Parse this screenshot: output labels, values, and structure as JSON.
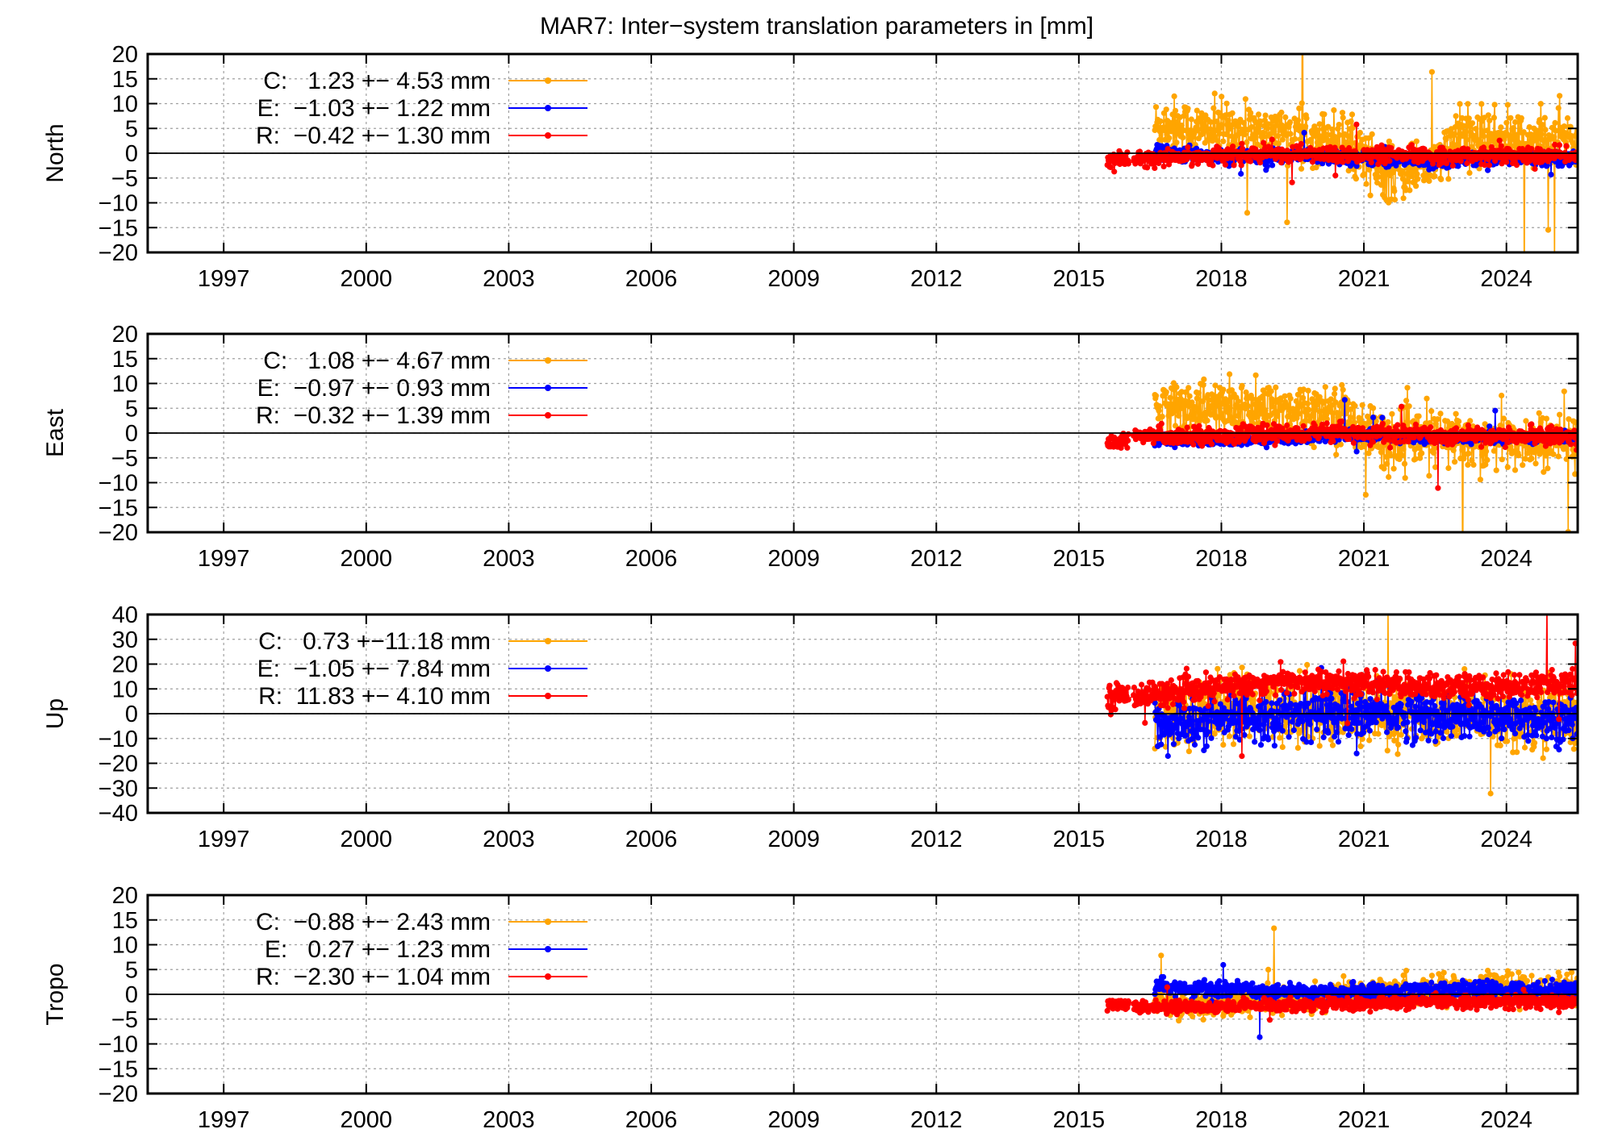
{
  "title": "MAR7: Inter−system translation parameters in [mm]",
  "colors": {
    "C": "#ffa500",
    "E": "#0000ff",
    "R": "#ff0000"
  },
  "chart_data": [
    {
      "type": "line",
      "ylabel": "North",
      "ylim": [
        -20,
        20
      ],
      "yticks": [
        "20",
        "15",
        "10",
        "5",
        "0",
        "−5",
        "−10",
        "−15",
        "−20"
      ],
      "ytick_values": [
        20,
        15,
        10,
        5,
        0,
        -5,
        -10,
        -15,
        -20
      ],
      "xlim": [
        1995.4,
        2025.5
      ],
      "xticks": [
        "1997",
        "2000",
        "2003",
        "2006",
        "2009",
        "2012",
        "2015",
        "2018",
        "2021",
        "2024"
      ],
      "xtick_values": [
        1997,
        2000,
        2003,
        2006,
        2009,
        2012,
        2015,
        2018,
        2021,
        2024
      ],
      "legend_position": "top-left",
      "series": [
        {
          "name": "C",
          "legend": "C:   1.23 +− 4.53 mm",
          "color": "#ffa500",
          "start": 2016.6,
          "end": 2025.5,
          "mean": 1.23,
          "spread": 4.53,
          "x": [
            2016.6,
            2017.0,
            2017.5,
            2018.0,
            2018.5,
            2019.0,
            2019.5,
            2020.0,
            2020.5,
            2021.0,
            2021.5,
            2022.0,
            2022.5,
            2023.0,
            2023.5,
            2024.0,
            2024.5,
            2025.0,
            2025.5
          ],
          "y": [
            5.5,
            6.0,
            4.5,
            5.0,
            4.0,
            4.5,
            4.0,
            3.5,
            3.0,
            0.0,
            -5.0,
            -3.0,
            -2.0,
            3.0,
            3.5,
            3.0,
            2.5,
            3.0,
            3.0
          ]
        },
        {
          "name": "E",
          "legend": "E:  −1.03 +− 1.22 mm",
          "color": "#0000ff",
          "start": 2016.6,
          "end": 2025.5,
          "mean": -1.03,
          "spread": 1.22,
          "x": [
            2016.6,
            2018.0,
            2019.5,
            2021.0,
            2022.5,
            2024.0,
            2025.5
          ],
          "y": [
            0.0,
            -0.5,
            -0.5,
            -1.0,
            -1.5,
            -1.0,
            -1.0
          ]
        },
        {
          "name": "R",
          "legend": "R:  −0.42 +− 1.30 mm",
          "color": "#ff0000",
          "start": 2015.6,
          "end": 2025.5,
          "mean": -0.42,
          "spread": 1.3,
          "x": [
            2015.6,
            2016.5,
            2018.0,
            2019.5,
            2021.0,
            2022.5,
            2024.0,
            2025.5
          ],
          "y": [
            -1.5,
            -1.0,
            -0.5,
            0.0,
            -0.5,
            -0.5,
            -0.5,
            -0.5
          ]
        }
      ]
    },
    {
      "type": "line",
      "ylabel": "East",
      "ylim": [
        -20,
        20
      ],
      "yticks": [
        "20",
        "15",
        "10",
        "5",
        "0",
        "−5",
        "−10",
        "−15",
        "−20"
      ],
      "ytick_values": [
        20,
        15,
        10,
        5,
        0,
        -5,
        -10,
        -15,
        -20
      ],
      "xlim": [
        1995.4,
        2025.5
      ],
      "xticks": [
        "1997",
        "2000",
        "2003",
        "2006",
        "2009",
        "2012",
        "2015",
        "2018",
        "2021",
        "2024"
      ],
      "xtick_values": [
        1997,
        2000,
        2003,
        2006,
        2009,
        2012,
        2015,
        2018,
        2021,
        2024
      ],
      "legend_position": "top-left",
      "series": [
        {
          "name": "C",
          "legend": "C:   1.08 +− 4.67 mm",
          "color": "#ffa500",
          "start": 2016.6,
          "end": 2025.5,
          "mean": 1.08,
          "spread": 4.67,
          "x": [
            2016.6,
            2017.5,
            2018.5,
            2019.5,
            2020.5,
            2021.0,
            2021.5,
            2022.5,
            2023.5,
            2024.5,
            2025.5
          ],
          "y": [
            5.0,
            5.0,
            4.5,
            5.0,
            4.0,
            1.0,
            -2.0,
            -1.0,
            -1.5,
            -2.0,
            -1.5
          ]
        },
        {
          "name": "E",
          "legend": "E:  −0.97 +− 0.93 mm",
          "color": "#0000ff",
          "start": 2016.6,
          "end": 2025.5,
          "mean": -0.97,
          "spread": 0.93,
          "x": [
            2016.6,
            2018.0,
            2019.5,
            2021.0,
            2022.5,
            2024.0,
            2025.5
          ],
          "y": [
            -1.5,
            -1.5,
            -1.0,
            -0.5,
            -1.0,
            -1.0,
            -1.0
          ]
        },
        {
          "name": "R",
          "legend": "R:  −0.32 +− 1.39 mm",
          "color": "#ff0000",
          "start": 2015.6,
          "end": 2025.5,
          "mean": -0.32,
          "spread": 1.39,
          "x": [
            2015.6,
            2016.5,
            2018.0,
            2019.5,
            2021.0,
            2022.5,
            2024.0,
            2025.5
          ],
          "y": [
            -2.0,
            -0.5,
            -0.5,
            0.0,
            0.0,
            -0.5,
            -0.5,
            -0.5
          ]
        }
      ]
    },
    {
      "type": "line",
      "ylabel": "Up",
      "ylim": [
        -40,
        40
      ],
      "yticks": [
        "40",
        "30",
        "20",
        "10",
        "0",
        "−10",
        "−20",
        "−30",
        "−40"
      ],
      "ytick_values": [
        40,
        30,
        20,
        10,
        0,
        -10,
        -20,
        -30,
        -40
      ],
      "xlim": [
        1995.4,
        2025.5
      ],
      "xticks": [
        "1997",
        "2000",
        "2003",
        "2006",
        "2009",
        "2012",
        "2015",
        "2018",
        "2021",
        "2024"
      ],
      "xtick_values": [
        1997,
        2000,
        2003,
        2006,
        2009,
        2012,
        2015,
        2018,
        2021,
        2024
      ],
      "legend_position": "top-left",
      "series": [
        {
          "name": "C",
          "legend": "C:   0.73 +−11.18 mm",
          "color": "#ffa500",
          "start": 2016.6,
          "end": 2025.5,
          "mean": 0.73,
          "spread": 11.18,
          "x": [
            2016.6,
            2018.0,
            2019.5,
            2021.0,
            2022.5,
            2024.0,
            2025.5
          ],
          "y": [
            0.0,
            2.0,
            2.0,
            1.0,
            0.0,
            0.0,
            0.0
          ]
        },
        {
          "name": "E",
          "legend": "E:  −1.05 +− 7.84 mm",
          "color": "#0000ff",
          "start": 2016.6,
          "end": 2025.5,
          "mean": -1.05,
          "spread": 7.84,
          "x": [
            2016.6,
            2017.5,
            2018.5,
            2019.5,
            2021.0,
            2022.5,
            2024.0,
            2025.5
          ],
          "y": [
            -6.0,
            -4.0,
            -2.0,
            0.0,
            0.0,
            -1.0,
            -2.0,
            -2.0
          ]
        },
        {
          "name": "R",
          "legend": "R:  11.83 +− 4.10 mm",
          "color": "#ff0000",
          "start": 2015.6,
          "end": 2025.5,
          "mean": 11.83,
          "spread": 4.1,
          "x": [
            2015.6,
            2016.5,
            2017.5,
            2018.5,
            2019.5,
            2021.0,
            2022.5,
            2024.0,
            2025.5
          ],
          "y": [
            7.0,
            8.0,
            9.0,
            12.0,
            13.0,
            12.0,
            11.0,
            11.0,
            12.0
          ]
        }
      ]
    },
    {
      "type": "line",
      "ylabel": "Tropo",
      "ylim": [
        -20,
        20
      ],
      "yticks": [
        "20",
        "15",
        "10",
        "5",
        "0",
        "−5",
        "−10",
        "−15",
        "−20"
      ],
      "ytick_values": [
        20,
        15,
        10,
        5,
        0,
        -5,
        -10,
        -15,
        -20
      ],
      "xlim": [
        1995.4,
        2025.5
      ],
      "xticks": [
        "1997",
        "2000",
        "2003",
        "2006",
        "2009",
        "2012",
        "2015",
        "2018",
        "2021",
        "2024"
      ],
      "xtick_values": [
        1997,
        2000,
        2003,
        2006,
        2009,
        2012,
        2015,
        2018,
        2021,
        2024
      ],
      "legend_position": "top-left",
      "series": [
        {
          "name": "C",
          "legend": "C:  −0.88 +− 2.43 mm",
          "color": "#ffa500",
          "start": 2016.6,
          "end": 2025.5,
          "mean": -0.88,
          "spread": 2.43,
          "x": [
            2016.6,
            2018.0,
            2019.5,
            2021.0,
            2022.5,
            2024.0,
            2025.5
          ],
          "y": [
            -2.0,
            -1.5,
            -1.0,
            0.0,
            1.0,
            1.0,
            1.0
          ]
        },
        {
          "name": "E",
          "legend": "E:   0.27 +− 1.23 mm",
          "color": "#0000ff",
          "start": 2016.6,
          "end": 2025.5,
          "mean": 0.27,
          "spread": 1.23,
          "x": [
            2016.6,
            2018.0,
            2019.5,
            2021.0,
            2022.5,
            2024.0,
            2025.5
          ],
          "y": [
            1.5,
            1.0,
            0.5,
            0.5,
            1.0,
            1.0,
            1.0
          ]
        },
        {
          "name": "R",
          "legend": "R:  −2.30 +− 1.04 mm",
          "color": "#ff0000",
          "start": 2015.6,
          "end": 2025.5,
          "mean": -2.3,
          "spread": 1.04,
          "x": [
            2015.6,
            2016.5,
            2018.0,
            2019.5,
            2021.0,
            2022.5,
            2024.0,
            2025.5
          ],
          "y": [
            -2.0,
            -2.5,
            -2.5,
            -2.0,
            -2.0,
            -1.5,
            -1.5,
            -1.5
          ]
        }
      ]
    }
  ]
}
